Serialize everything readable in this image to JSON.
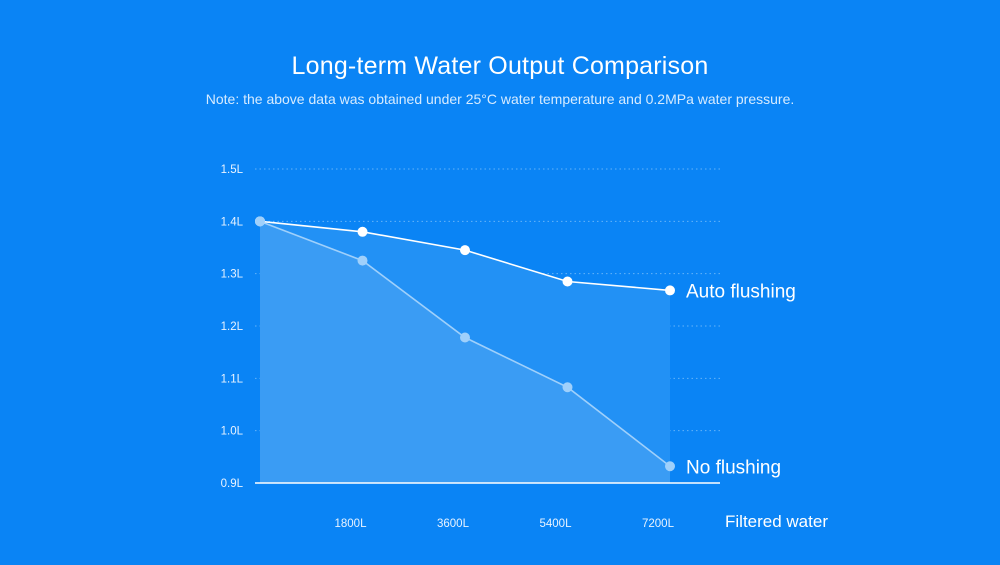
{
  "chart_data": {
    "type": "line",
    "title": "Long-term Water Output Comparison",
    "subtitle": "Note: the above data was obtained under 25°C water temperature and 0.2MPa water pressure.",
    "xlabel": "Filtered water",
    "ylabel": "",
    "x": [
      0,
      1800,
      3600,
      5400,
      7200
    ],
    "x_tick_labels": [
      "1800L",
      "3600L",
      "5400L",
      "7200L"
    ],
    "x_tick_values": [
      1800,
      3600,
      5400,
      7200
    ],
    "y_tick_labels": [
      "0.9L",
      "1.0L",
      "1.1L",
      "1.2L",
      "1.3L",
      "1.4L",
      "1.5L"
    ],
    "y_tick_values": [
      0.9,
      1.0,
      1.1,
      1.2,
      1.3,
      1.4,
      1.5
    ],
    "ylim": [
      0.9,
      1.5
    ],
    "xlim": [
      0,
      7200
    ],
    "grid": true,
    "series": [
      {
        "name": "Auto flushing",
        "values": [
          1.4,
          1.38,
          1.345,
          1.285,
          1.268
        ],
        "color": "#ffffff"
      },
      {
        "name": "No flushing",
        "values": [
          1.4,
          1.325,
          1.178,
          1.083,
          0.932
        ],
        "color": "#9fd0fb"
      }
    ],
    "colors": {
      "background": "#0a84f5",
      "auto_fill": "#2291f5",
      "no_fill": "#3a9cf4",
      "grid": "#7cc0fb"
    }
  }
}
